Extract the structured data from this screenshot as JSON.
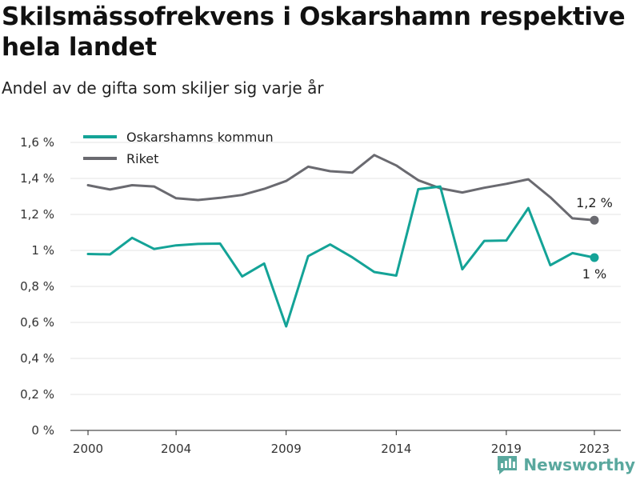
{
  "header": {
    "title": "Skilsmässofrekvens i Oskarshamn respektive hela landet",
    "subtitle": "Andel av de gifta som skiljer sig varje år"
  },
  "brand": {
    "name": "Newsworthy",
    "color": "#5aa89e"
  },
  "chart_data": {
    "type": "line",
    "title": "Skilsmässofrekvens i Oskarshamn respektive hela landet",
    "subtitle": "Andel av de gifta som skiljer sig varje år",
    "xlabel": "",
    "ylabel": "",
    "x": [
      2000,
      2001,
      2002,
      2003,
      2004,
      2005,
      2006,
      2007,
      2008,
      2009,
      2010,
      2011,
      2012,
      2013,
      2014,
      2015,
      2016,
      2017,
      2018,
      2019,
      2020,
      2021,
      2022,
      2023
    ],
    "x_ticks": [
      "2000",
      "2004",
      "2009",
      "2014",
      "2019",
      "2023"
    ],
    "x_tick_values": [
      2000,
      2004,
      2009,
      2014,
      2019,
      2023
    ],
    "xlim": [
      1999.2,
      2024.2
    ],
    "ylim": [
      0,
      1.6
    ],
    "y_ticks": [
      "0 %",
      "0,2 %",
      "0,4 %",
      "0,6 %",
      "0,8 %",
      "1 %",
      "1,2 %",
      "1,4 %",
      "1,6 %"
    ],
    "y_tick_values": [
      0,
      0.2,
      0.4,
      0.6,
      0.8,
      1.0,
      1.2,
      1.4,
      1.6
    ],
    "grid": true,
    "legend_position": "top-left",
    "series": [
      {
        "name": "Oskarshamns kommun",
        "color": "#14a397",
        "values": [
          0.98,
          0.978,
          1.07,
          1.008,
          1.028,
          1.036,
          1.038,
          0.855,
          0.927,
          0.578,
          0.968,
          1.033,
          0.962,
          0.88,
          0.86,
          1.34,
          1.355,
          0.895,
          1.053,
          1.055,
          1.235,
          0.918,
          0.985,
          0.96
        ],
        "end_label": "1 %"
      },
      {
        "name": "Riket",
        "color": "#6a6a70",
        "values": [
          1.362,
          1.338,
          1.362,
          1.355,
          1.29,
          1.28,
          1.292,
          1.308,
          1.342,
          1.386,
          1.465,
          1.44,
          1.432,
          1.53,
          1.472,
          1.39,
          1.345,
          1.322,
          1.348,
          1.37,
          1.395,
          1.295,
          1.178,
          1.168
        ],
        "end_label": "1,2 %"
      }
    ]
  }
}
